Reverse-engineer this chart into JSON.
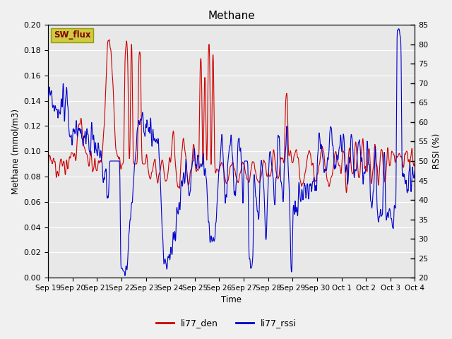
{
  "title": "Methane",
  "xlabel": "Time",
  "ylabel_left": "Methane (mmol/m3)",
  "ylabel_right": "RSSI (%)",
  "ylim_left": [
    0.0,
    0.2
  ],
  "ylim_right": [
    20,
    85
  ],
  "yticks_left": [
    0.0,
    0.02,
    0.04,
    0.06,
    0.08,
    0.1,
    0.12,
    0.14,
    0.16,
    0.18,
    0.2
  ],
  "yticks_right": [
    20,
    25,
    30,
    35,
    40,
    45,
    50,
    55,
    60,
    65,
    70,
    75,
    80,
    85
  ],
  "line_den_color": "#cc0000",
  "line_rssi_color": "#0000cc",
  "bg_color": "#e8e8e8",
  "fig_bg_color": "#f0f0f0",
  "legend_den": "li77_den",
  "legend_rssi": "li77_rssi",
  "sw_flux_label": "SW_flux",
  "sw_flux_bg": "#cccc44",
  "sw_flux_text": "#880000",
  "grid_color": "#ffffff",
  "linewidth": 0.8
}
